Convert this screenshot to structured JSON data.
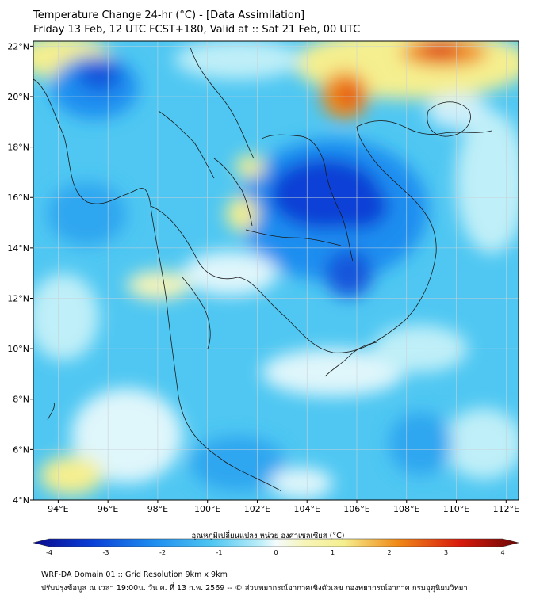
{
  "header": {
    "title_line1": "Temperature Change 24-hr (°C) - [Data Assimilation]",
    "title_line2": "Friday 13 Feb, 12 UTC FCST+180, Valid at :: Sat 21 Feb, 00 UTC"
  },
  "map": {
    "lon_ticks": [
      "94°E",
      "96°E",
      "98°E",
      "100°E",
      "102°E",
      "104°E",
      "106°E",
      "108°E",
      "110°E",
      "112°E"
    ],
    "lat_ticks": [
      "22°N",
      "20°N",
      "18°N",
      "16°N",
      "14°N",
      "12°N",
      "10°N",
      "8°N",
      "6°N",
      "4°N"
    ],
    "lon_range": [
      93,
      112.5
    ],
    "lat_range": [
      4,
      22.2
    ],
    "field_colors": {
      "strong_cold": "#0a3fd6",
      "cold": "#1f8ef0",
      "cool": "#4fc7f2",
      "neutral": "#dff6fb",
      "warm": "#f5ef8f",
      "hot": "#f08a18",
      "very_hot": "#d81a0c"
    }
  },
  "colorbar": {
    "label": "อุณหภูมิเปลี่ยนแปลง หน่วย องศาเซลเซียส (°C)",
    "ticks": [
      "-4",
      "-3",
      "-2",
      "-1",
      "0",
      "1",
      "2",
      "3",
      "4"
    ],
    "range": [
      -4,
      4
    ]
  },
  "footer": {
    "line1": "WRF-DA Domain 01 :: Grid Resolution 9km x 9km",
    "line2": "ปรับปรุงข้อมูล ณ เวลา 19:00น. วัน ศ. ที่ 13 ก.พ. 2569 -- © ส่วนพยากรณ์อากาศเชิงตัวเลข กองพยากรณ์อากาศ กรมอุตุนิยมวิทยา"
  }
}
